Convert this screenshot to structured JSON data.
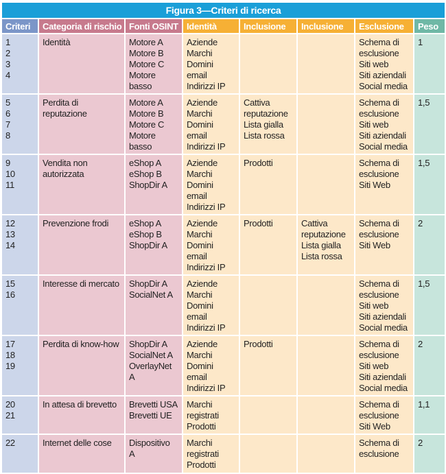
{
  "title": "Figura 3—Criteri di ricerca",
  "colors": {
    "title": "#1a9fd8",
    "criteri": "#7b96c8",
    "rischio": "#c77a8d",
    "ricerca": "#f6b035",
    "peso": "#6fb8a6"
  },
  "headers": [
    "Criteri",
    "Categoria di rischio",
    "Fonti OSINT",
    "Identità",
    "Inclusione",
    "Inclusione",
    "Esclusione",
    "Peso"
  ],
  "rows": [
    {
      "criteri": "1\n2\n3\n4",
      "categoria": "Identità",
      "fonti": "Motore A\nMotore B\nMotore C\nMotore\nbasso",
      "identita": "Aziende\nMarchi\nDomini\nemail\nIndirizzi IP",
      "inclusione1": "",
      "inclusione2": "",
      "esclusione": "Schema di\nesclusione\nSiti web\nSiti aziendali\nSocial media",
      "peso": "1"
    },
    {
      "criteri": "5\n6\n7\n8",
      "categoria": "Perdita di\nreputazione",
      "fonti": "Motore A\nMotore B\nMotore C\nMotore\nbasso",
      "identita": "Aziende\nMarchi\nDomini\nemail\nIndirizzi IP",
      "inclusione1": "Cattiva\nreputazione\nLista gialla\nLista rossa",
      "inclusione2": "",
      "esclusione": "Schema di\nesclusione\nSiti web\nSiti aziendali\nSocial media",
      "peso": "1,5"
    },
    {
      "criteri": "9\n10\n11",
      "categoria": "Vendita non\nautorizzata",
      "fonti": "eShop A\neShop B\nShopDir A",
      "identita": "Aziende\nMarchi\nDomini\nemail\nIndirizzi IP",
      "inclusione1": "Prodotti",
      "inclusione2": "",
      "esclusione": "Schema di\nesclusione\nSiti Web",
      "peso": "1,5"
    },
    {
      "criteri": "12\n13\n14",
      "categoria": "Prevenzione frodi",
      "fonti": "eShop A\neShop B\nShopDir A",
      "identita": "Aziende\nMarchi\nDomini\nemail\nIndirizzi IP",
      "inclusione1": "Prodotti",
      "inclusione2": "Cattiva\nreputazione\nLista gialla\nLista rossa",
      "esclusione": "Schema di\nesclusione\nSiti Web",
      "peso": "2"
    },
    {
      "criteri": "15\n16",
      "categoria": "Interesse di mercato",
      "fonti": "ShopDir A\nSocialNet A",
      "identita": "Aziende\nMarchi\nDomini\nemail\nIndirizzi IP",
      "inclusione1": "",
      "inclusione2": "",
      "esclusione": "Schema di\nesclusione\nSiti web\nSiti aziendali\nSocial media",
      "peso": "1,5"
    },
    {
      "criteri": "17\n18\n19",
      "categoria": "Perdita di know-how",
      "fonti": "ShopDir A\nSocialNet A\nOverlayNet A",
      "identita": "Aziende\nMarchi\nDomini\nemail\nIndirizzi IP",
      "inclusione1": "Prodotti",
      "inclusione2": "",
      "esclusione": "Schema di\nesclusione\nSiti web\nSiti aziendali\nSocial media",
      "peso": "2"
    },
    {
      "criteri": "20\n21",
      "categoria": "In attesa di brevetto",
      "fonti": "Brevetti USA\nBrevetti UE",
      "identita": "Marchi\nregistrati\nProdotti",
      "inclusione1": "",
      "inclusione2": "",
      "esclusione": "Schema di\nesclusione\nSiti Web",
      "peso": "1,1"
    },
    {
      "criteri": "22",
      "categoria": "Internet delle cose",
      "fonti": "Dispositivo\nA",
      "identita": "Marchi\nregistrati\nProdotti",
      "inclusione1": "",
      "inclusione2": "",
      "esclusione": "Schema di\nesclusione",
      "peso": "2"
    }
  ]
}
